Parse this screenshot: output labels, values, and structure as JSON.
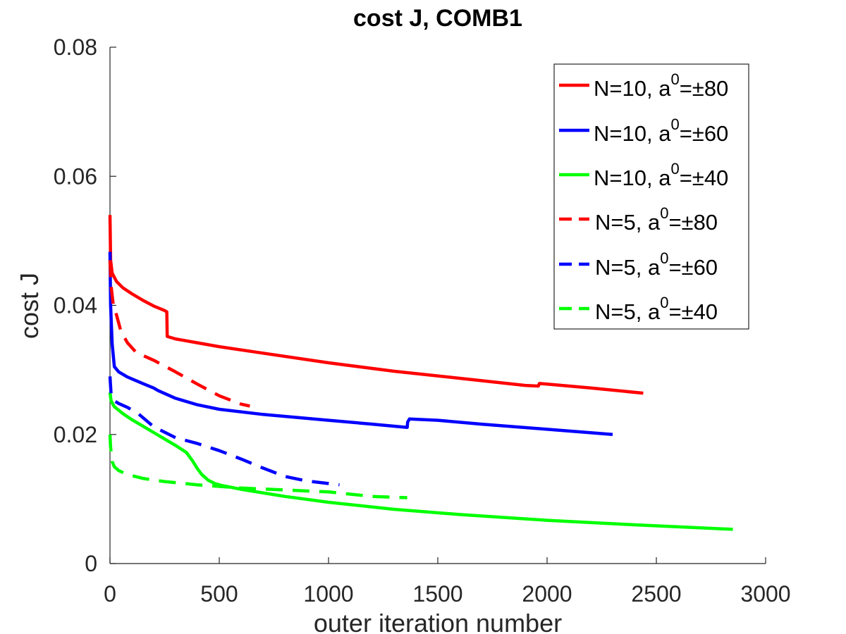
{
  "chart_data": {
    "type": "line",
    "title": "cost J, COMB1",
    "xlabel": "outer iteration number",
    "ylabel": "cost J",
    "xlim": [
      0,
      3000
    ],
    "ylim": [
      0,
      0.08
    ],
    "xticks": [
      0,
      500,
      1000,
      1500,
      2000,
      2500,
      3000
    ],
    "xtick_labels": [
      "0",
      "500",
      "1000",
      "1500",
      "2000",
      "2500",
      "3000"
    ],
    "yticks": [
      0,
      0.02,
      0.04,
      0.06,
      0.08
    ],
    "ytick_labels": [
      "0",
      "0.02",
      "0.04",
      "0.06",
      "0.08"
    ],
    "grid": false,
    "legend_position": "top-right",
    "series": [
      {
        "name": "N=10, a0=±80",
        "label_main": "N=10, a",
        "label_sup": "0",
        "label_tail": "=±80",
        "color": "#ff0000",
        "style": "solid",
        "x": [
          0,
          3,
          10,
          30,
          60,
          100,
          150,
          200,
          250,
          260,
          262,
          270,
          300,
          400,
          500,
          700,
          1000,
          1300,
          1600,
          1900,
          1960,
          1965,
          2000,
          2200,
          2440
        ],
        "y": [
          0.054,
          0.047,
          0.045,
          0.0437,
          0.0427,
          0.0418,
          0.0408,
          0.0399,
          0.0392,
          0.039,
          0.0352,
          0.0351,
          0.0348,
          0.0342,
          0.0336,
          0.0326,
          0.0311,
          0.0298,
          0.0287,
          0.0276,
          0.0275,
          0.0279,
          0.0278,
          0.0272,
          0.0264
        ]
      },
      {
        "name": "N=10, a0=±60",
        "label_main": "N=10, a",
        "label_sup": "0",
        "label_tail": "=±60",
        "color": "#0000ff",
        "style": "solid",
        "x": [
          0,
          3,
          10,
          20,
          40,
          80,
          150,
          200,
          220,
          260,
          300,
          400,
          500,
          700,
          1000,
          1200,
          1360,
          1362,
          1370,
          1500,
          1700,
          2000,
          2300
        ],
        "y": [
          0.0483,
          0.04,
          0.034,
          0.0305,
          0.0297,
          0.0289,
          0.0279,
          0.0272,
          0.0268,
          0.0262,
          0.0256,
          0.0246,
          0.0239,
          0.0231,
          0.0222,
          0.0216,
          0.0211,
          0.0219,
          0.0224,
          0.0222,
          0.0216,
          0.0208,
          0.02
        ]
      },
      {
        "name": "N=10, a0=±40",
        "label_main": "N=10, a",
        "label_sup": "0",
        "label_tail": "=±40",
        "color": "#00ff00",
        "style": "solid",
        "x": [
          0,
          5,
          20,
          60,
          100,
          150,
          200,
          250,
          300,
          350,
          380,
          400,
          420,
          450,
          480,
          510,
          600,
          800,
          1000,
          1300,
          1600,
          2000,
          2400,
          2850
        ],
        "y": [
          0.0265,
          0.0252,
          0.0243,
          0.0232,
          0.0223,
          0.0213,
          0.0203,
          0.0193,
          0.0183,
          0.0172,
          0.0158,
          0.0147,
          0.0138,
          0.0129,
          0.0124,
          0.0121,
          0.0115,
          0.0104,
          0.0095,
          0.0084,
          0.0076,
          0.0067,
          0.006,
          0.0053
        ]
      },
      {
        "name": "N=5, a0=±80",
        "label_main": "N=5, a",
        "label_sup": "0",
        "label_tail": "=±80",
        "color": "#ff0000",
        "style": "dashed",
        "x": [
          0,
          5,
          15,
          30,
          50,
          80,
          120,
          200,
          300,
          400,
          500,
          600,
          640
        ],
        "y": [
          0.047,
          0.043,
          0.04,
          0.0385,
          0.036,
          0.0342,
          0.0327,
          0.0315,
          0.0297,
          0.0278,
          0.026,
          0.0247,
          0.0244
        ]
      },
      {
        "name": "N=5, a0=±60",
        "label_main": "N=5, a",
        "label_sup": "0",
        "label_tail": "=±60",
        "color": "#0000ff",
        "style": "dashed",
        "x": [
          0,
          5,
          15,
          40,
          80,
          130,
          200,
          300,
          400,
          500,
          600,
          700,
          800,
          900,
          1000,
          1050
        ],
        "y": [
          0.029,
          0.0262,
          0.0253,
          0.0248,
          0.0242,
          0.0232,
          0.0212,
          0.0195,
          0.0186,
          0.0175,
          0.0162,
          0.0148,
          0.0135,
          0.0128,
          0.0124,
          0.0122
        ]
      },
      {
        "name": "N=5, a0=±40",
        "label_main": "N=5, a",
        "label_sup": "0",
        "label_tail": "=±40",
        "color": "#00ff00",
        "style": "dashed",
        "x": [
          0,
          3,
          10,
          20,
          40,
          80,
          150,
          250,
          400,
          600,
          800,
          1000,
          1200,
          1360
        ],
        "y": [
          0.02,
          0.018,
          0.0158,
          0.015,
          0.0144,
          0.0138,
          0.0132,
          0.0127,
          0.0122,
          0.0117,
          0.0114,
          0.0111,
          0.0104,
          0.0102
        ]
      }
    ]
  }
}
